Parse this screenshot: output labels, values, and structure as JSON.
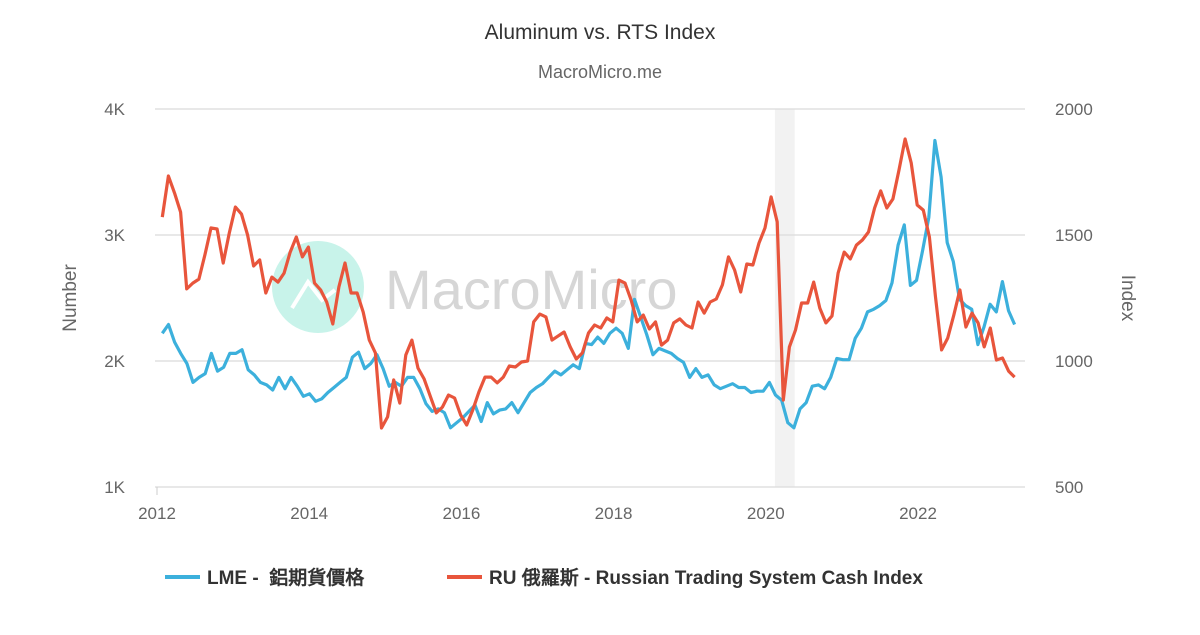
{
  "chart_data": {
    "type": "line",
    "title": "Aluminum vs. RTS Index",
    "subtitle": "MacroMicro.me",
    "watermark": "MacroMicro",
    "x_ticks": [
      "2012",
      "2014",
      "2016",
      "2018",
      "2020",
      "2022"
    ],
    "x_tick_values": [
      2012,
      2014,
      2016,
      2018,
      2020,
      2022
    ],
    "xlim": [
      2012,
      2023.4
    ],
    "y_left": {
      "label": "Number",
      "ylim": [
        1000,
        4000
      ],
      "ticks": [
        4000,
        3000,
        2000,
        1000
      ],
      "tick_labels": [
        "4K",
        "3K",
        "2K",
        "1K"
      ]
    },
    "y_right": {
      "label": "Index",
      "ylim": [
        500,
        2000
      ],
      "ticks": [
        2000,
        1500,
        1000,
        500
      ],
      "tick_labels": [
        "2000",
        "1500",
        "1000",
        "500"
      ]
    },
    "grid": true,
    "shaded_ranges": [
      [
        2020.12,
        2020.38
      ]
    ],
    "legend_position": "bottom",
    "series": [
      {
        "name": "LME -  鋁期貨價格",
        "axis": "left",
        "color": "#3cb0dc",
        "x_start": 2012.07,
        "x_end": 2023.27,
        "values": [
          2220,
          2290,
          2150,
          2060,
          1980,
          1830,
          1870,
          1900,
          2060,
          1920,
          1950,
          2060,
          2060,
          2090,
          1930,
          1890,
          1830,
          1810,
          1770,
          1870,
          1780,
          1870,
          1800,
          1720,
          1740,
          1680,
          1700,
          1750,
          1790,
          1830,
          1870,
          2030,
          2070,
          1940,
          1980,
          2050,
          1940,
          1800,
          1830,
          1800,
          1870,
          1870,
          1780,
          1660,
          1600,
          1620,
          1590,
          1470,
          1510,
          1550,
          1600,
          1650,
          1520,
          1670,
          1580,
          1610,
          1620,
          1670,
          1590,
          1670,
          1750,
          1790,
          1820,
          1870,
          1920,
          1890,
          1930,
          1970,
          1940,
          2140,
          2130,
          2190,
          2140,
          2220,
          2260,
          2220,
          2100,
          2490,
          2350,
          2210,
          2050,
          2100,
          2080,
          2060,
          2020,
          1990,
          1870,
          1940,
          1870,
          1890,
          1810,
          1780,
          1800,
          1820,
          1790,
          1790,
          1750,
          1760,
          1760,
          1830,
          1730,
          1690,
          1510,
          1470,
          1620,
          1670,
          1800,
          1810,
          1780,
          1870,
          2020,
          2010,
          2010,
          2180,
          2260,
          2390,
          2410,
          2440,
          2480,
          2620,
          2920,
          3080,
          2600,
          2640,
          2880,
          3140,
          3750,
          3460,
          2940,
          2790,
          2490,
          2440,
          2410,
          2130,
          2270,
          2450,
          2390,
          2630,
          2400,
          2290
        ]
      },
      {
        "name": "RU 俄羅斯 - Russian Trading System Cash Index",
        "axis": "right",
        "color": "#e8553c",
        "x_start": 2012.07,
        "x_end": 2023.27,
        "values": [
          1571,
          1734,
          1667,
          1591,
          1286,
          1309,
          1325,
          1421,
          1528,
          1524,
          1389,
          1508,
          1611,
          1583,
          1500,
          1377,
          1401,
          1270,
          1333,
          1313,
          1349,
          1432,
          1492,
          1413,
          1452,
          1309,
          1282,
          1234,
          1147,
          1294,
          1389,
          1270,
          1270,
          1194,
          1083,
          1032,
          734,
          778,
          925,
          833,
          1024,
          1083,
          972,
          929,
          861,
          794,
          817,
          865,
          853,
          786,
          746,
          806,
          877,
          936,
          936,
          913,
          936,
          980,
          976,
          996,
          1000,
          1155,
          1186,
          1175,
          1083,
          1099,
          1115,
          1056,
          1008,
          1032,
          1111,
          1143,
          1131,
          1171,
          1155,
          1321,
          1309,
          1242,
          1155,
          1182,
          1127,
          1155,
          1063,
          1083,
          1151,
          1167,
          1143,
          1131,
          1234,
          1190,
          1234,
          1246,
          1302,
          1413,
          1361,
          1274,
          1385,
          1381,
          1468,
          1528,
          1651,
          1552,
          845,
          1056,
          1123,
          1230,
          1230,
          1313,
          1210,
          1151,
          1179,
          1349,
          1432,
          1405,
          1460,
          1480,
          1512,
          1607,
          1675,
          1607,
          1643,
          1758,
          1881,
          1786,
          1619,
          1599,
          1492,
          1254,
          1044,
          1091,
          1182,
          1282,
          1135,
          1190,
          1151,
          1056,
          1131,
          1004,
          1012,
          960,
          936
        ]
      }
    ]
  }
}
